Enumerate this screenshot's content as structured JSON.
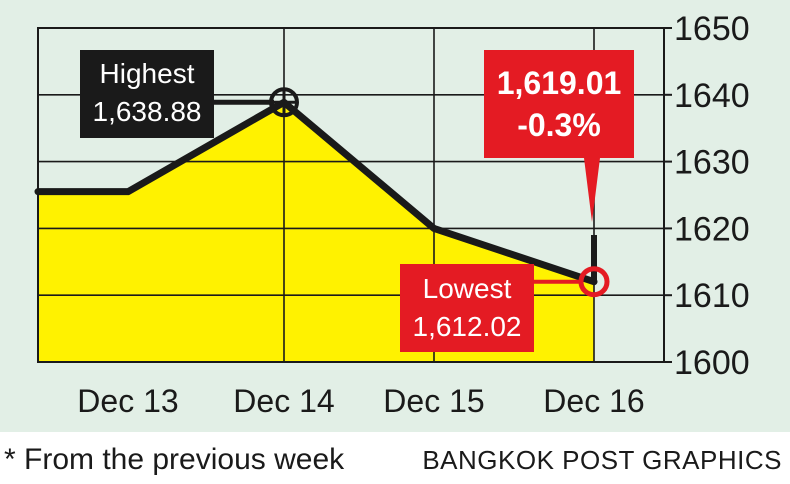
{
  "chart_data": {
    "type": "line",
    "categories": [
      "Dec 13",
      "Dec 14",
      "Dec 15",
      "Dec 16"
    ],
    "series": [
      {
        "x": [
          "",
          "Dec 13",
          "Dec 14",
          "Dec 15",
          "Dec 16"
        ],
        "values": [
          1625.5,
          1625.5,
          1638.88,
          1620,
          1612.02
        ]
      }
    ],
    "last_close": 1619.01,
    "ylim": [
      1600,
      1650
    ],
    "yticks": [
      1600,
      1610,
      1620,
      1630,
      1640,
      1650
    ],
    "grid": true,
    "annotations": {
      "high": {
        "title": "Highest",
        "value": "1,638.88",
        "at": "Dec 14",
        "y": 1638.88
      },
      "low": {
        "title": "Lowest",
        "value": "1,612.02",
        "at": "Dec 16",
        "y": 1612.02
      },
      "close": {
        "value": "1,619.01",
        "change": "-0.3%",
        "at": "Dec 16",
        "y": 1619.01
      }
    }
  },
  "footnote": "* From the previous week",
  "credit": "BANGKOK POST GRAPHICS",
  "colors": {
    "background": "#e2efe6",
    "fill": "#fff200",
    "line": "#1a1a1a",
    "grid": "#1a1a1a",
    "callout_dark": "#1a1a1a",
    "callout_red": "#e41b23"
  }
}
